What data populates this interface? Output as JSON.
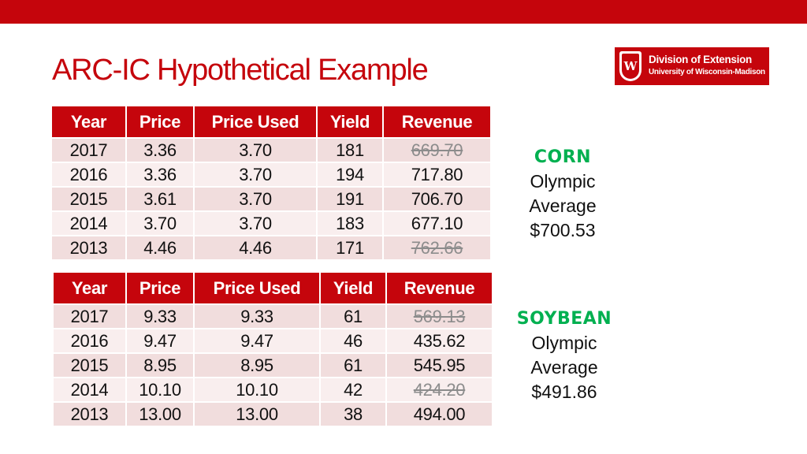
{
  "slide": {
    "title": "ARC-IC Hypothetical Example",
    "colors": {
      "accent": "#c5050c",
      "crop_label": "#00b050",
      "excluded_value": "#8c8c8c"
    }
  },
  "logo": {
    "crest_letter": "W",
    "line1": "Division of Extension",
    "line2": "University of Wisconsin-Madison"
  },
  "corn": {
    "headers": [
      "Year",
      "Price",
      "Price Used",
      "Yield",
      "Revenue"
    ],
    "rows": [
      {
        "year": "2017",
        "price": "3.36",
        "price_used": "3.70",
        "yield": "181",
        "revenue": "669.70",
        "excluded": true
      },
      {
        "year": "2016",
        "price": "3.36",
        "price_used": "3.70",
        "yield": "194",
        "revenue": "717.80",
        "excluded": false
      },
      {
        "year": "2015",
        "price": "3.61",
        "price_used": "3.70",
        "yield": "191",
        "revenue": "706.70",
        "excluded": false
      },
      {
        "year": "2014",
        "price": "3.70",
        "price_used": "3.70",
        "yield": "183",
        "revenue": "677.10",
        "excluded": false
      },
      {
        "year": "2013",
        "price": "4.46",
        "price_used": "4.46",
        "yield": "171",
        "revenue": "762.66",
        "excluded": true
      }
    ],
    "summary": {
      "crop": "CORN",
      "line1": "Olympic",
      "line2": "Average",
      "value": "$700.53"
    }
  },
  "soybean": {
    "headers": [
      "Year",
      "Price",
      "Price Used",
      "Yield",
      "Revenue"
    ],
    "rows": [
      {
        "year": "2017",
        "price": "9.33",
        "price_used": "9.33",
        "yield": "61",
        "revenue": "569.13",
        "excluded": true
      },
      {
        "year": "2016",
        "price": "9.47",
        "price_used": "9.47",
        "yield": "46",
        "revenue": "435.62",
        "excluded": false
      },
      {
        "year": "2015",
        "price": "8.95",
        "price_used": "8.95",
        "yield": "61",
        "revenue": "545.95",
        "excluded": false
      },
      {
        "year": "2014",
        "price": "10.10",
        "price_used": "10.10",
        "yield": "42",
        "revenue": "424.20",
        "excluded": true
      },
      {
        "year": "2013",
        "price": "13.00",
        "price_used": "13.00",
        "yield": "38",
        "revenue": "494.00",
        "excluded": false
      }
    ],
    "summary": {
      "crop": "SOYBEAN",
      "line1": "Olympic",
      "line2": "Average",
      "value": "$491.86"
    }
  }
}
